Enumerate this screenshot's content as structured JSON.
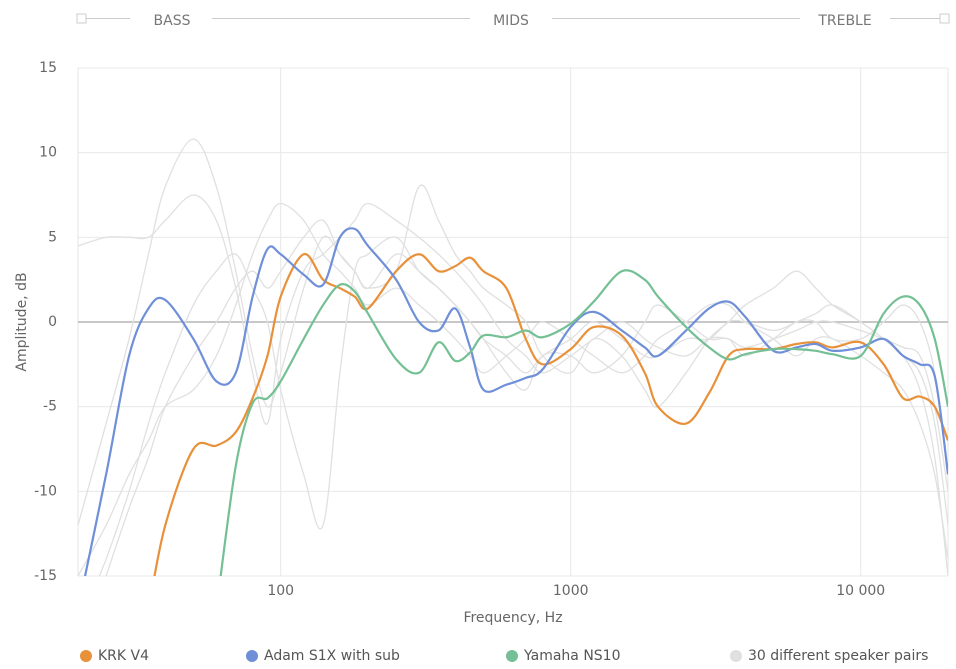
{
  "chart_data": {
    "type": "line",
    "bands": [
      "BASS",
      "MIDS",
      "TREBLE"
    ],
    "xlabel": "Frequency, Hz",
    "ylabel": "Amplitude, dB",
    "xscale": "log",
    "grid": true,
    "legend": "bottom",
    "xlim": [
      20,
      20000
    ],
    "ylim": [
      -15,
      15
    ],
    "xticks": [
      100,
      1000,
      {
        "value": 10000,
        "label": "10 000"
      }
    ],
    "yticks": [
      -15,
      -10,
      -5,
      0,
      5,
      10,
      15
    ],
    "x": [
      20,
      25,
      30,
      35,
      40,
      50,
      60,
      70,
      80,
      90,
      100,
      120,
      140,
      160,
      180,
      200,
      250,
      300,
      350,
      400,
      450,
      500,
      600,
      700,
      800,
      1000,
      1200,
      1500,
      1800,
      2000,
      2500,
      3000,
      3500,
      4000,
      5000,
      6000,
      7000,
      8000,
      10000,
      12000,
      14000,
      16000,
      18000,
      20000
    ],
    "series": [
      {
        "name": "30 different speaker pairs",
        "color": "#e0e0e0",
        "values": [
          [
            -12,
            -6,
            -1,
            4,
            8,
            10.8,
            8,
            3,
            -2,
            -5,
            -3,
            2,
            5,
            4,
            3,
            2,
            4,
            3,
            2,
            1,
            0,
            -1,
            -2,
            -3,
            -2,
            -1,
            0,
            -1,
            -2,
            -2,
            -1,
            -1,
            0,
            0,
            -0.5,
            0,
            0.5,
            1,
            0,
            -1,
            -2,
            -4,
            -8,
            -15
          ],
          [
            4.5,
            5,
            5,
            5,
            6,
            7.5,
            6,
            2,
            -3,
            -6,
            -1,
            3,
            4,
            5,
            6,
            7,
            6,
            5,
            4,
            3,
            2,
            1,
            -1,
            -2,
            -3,
            -2,
            -1,
            0,
            -1,
            -1.5,
            -2,
            -1,
            -1,
            -1.5,
            -1,
            -0.5,
            0,
            0,
            -0.5,
            -1,
            -1.5,
            -2,
            -5,
            -10
          ],
          [
            -20,
            -15,
            -11,
            -8,
            -5,
            -2,
            0,
            2,
            3,
            2,
            3,
            5,
            6,
            4,
            3,
            2,
            3,
            8,
            6,
            4,
            3,
            2,
            1,
            0,
            -2,
            -3,
            -1,
            -2,
            -4,
            -5,
            -3,
            -1,
            0,
            1,
            2,
            3,
            2,
            1,
            0,
            -1,
            -2,
            -3,
            -6,
            -12
          ],
          [
            -18,
            -14,
            -10,
            -6,
            -3,
            1,
            3,
            4,
            2,
            0,
            -4,
            -9,
            -12,
            -3,
            3,
            4,
            5,
            3,
            2,
            1,
            0,
            -1,
            -3,
            -4,
            -2,
            -2,
            -3,
            -2,
            0,
            1,
            0,
            -1,
            -1,
            -2,
            -1,
            0,
            0,
            -1,
            -1,
            0,
            1,
            0,
            -3,
            -9
          ],
          [
            -15,
            -12,
            -9,
            -7,
            -5,
            -4,
            -2,
            1,
            4,
            6,
            7,
            6,
            4,
            3,
            2,
            1,
            2,
            1,
            0,
            -1,
            -2,
            -3,
            -2,
            -1,
            0,
            -1,
            -2,
            -3,
            -2,
            -1,
            0,
            1,
            1,
            0,
            -1,
            -2,
            -1,
            -1,
            -2,
            -3,
            -4,
            -6,
            -9,
            -14
          ]
        ]
      },
      {
        "name": "KRK V4",
        "color": "#e8913a",
        "values": [
          null,
          null,
          null,
          -17,
          -12,
          -7.5,
          -7.3,
          -6.5,
          -4.5,
          -2,
          1.5,
          4,
          2.5,
          2,
          1.5,
          0.8,
          3,
          4,
          3,
          3.3,
          3.8,
          3,
          2,
          -1,
          -2.5,
          -1.6,
          -0.3,
          -0.8,
          -3,
          -5,
          -6,
          -4.2,
          -2,
          -1.6,
          -1.6,
          -1.3,
          -1.2,
          -1.5,
          -1.2,
          -2.5,
          -4.5,
          -4.4,
          -5,
          -7
        ]
      },
      {
        "name": "Adam S1X with sub",
        "color": "#6f8fd8",
        "values": [
          -17,
          -9,
          -2,
          0.8,
          1.3,
          -1,
          -3.5,
          -3,
          1.5,
          4.3,
          4,
          2.8,
          2.2,
          5,
          5.5,
          4.5,
          2.5,
          0,
          -0.5,
          0.8,
          -1.5,
          -4,
          -3.7,
          -3.3,
          -2.8,
          -0.3,
          0.6,
          -0.5,
          -1.5,
          -2,
          -0.5,
          0.8,
          1.2,
          0.3,
          -1.7,
          -1.5,
          -1.3,
          -1.7,
          -1.5,
          -1,
          -2,
          -2.5,
          -3.2,
          -9
        ]
      },
      {
        "name": "Yamaha NS10",
        "color": "#74c094",
        "values": [
          null,
          null,
          null,
          null,
          null,
          null,
          -17,
          -8.5,
          -4.8,
          -4.5,
          -3.5,
          -1,
          1,
          2.2,
          1.8,
          0.5,
          -2.2,
          -3,
          -1.2,
          -2.3,
          -1.8,
          -0.8,
          -0.9,
          -0.5,
          -0.9,
          -0.1,
          1.2,
          3,
          2.5,
          1.5,
          -0.3,
          -1.5,
          -2.2,
          -1.9,
          -1.6,
          -1.6,
          -1.7,
          -1.9,
          -2,
          0.5,
          1.5,
          1,
          -1,
          -5
        ]
      }
    ]
  }
}
